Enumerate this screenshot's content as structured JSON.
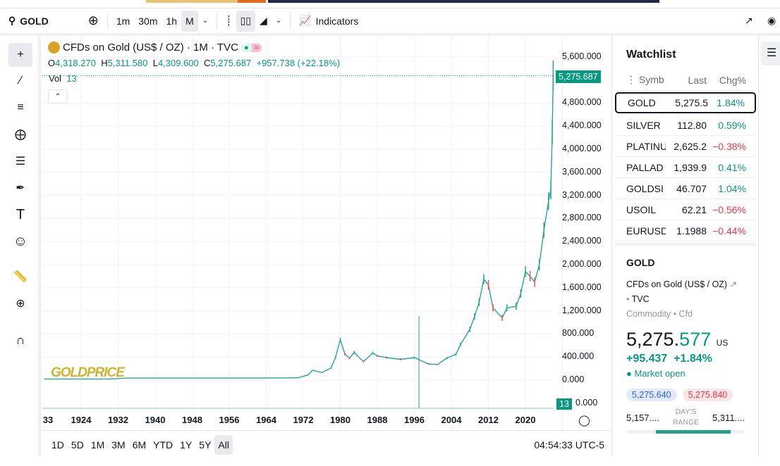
{
  "toolbar": {
    "symbol": "GOLD",
    "intervals": [
      "1m",
      "30m",
      "1h",
      "M"
    ],
    "indicators": "Indicators"
  },
  "legend": {
    "title": "CFDs on Gold (US$ / OZ) · 1M · TVC",
    "o_label": "O",
    "o": "4,318.270",
    "h_label": "H",
    "h": "5,311.580",
    "l_label": "L",
    "l": "4,309.600",
    "c_label": "C",
    "c": "5,275.687",
    "change": "+957.738 (+22.18%)",
    "vol_label": "Vol",
    "vol": "13"
  },
  "price_axis": [
    "5,600.000",
    "4,800.000",
    "4,400.000",
    "4,000.000",
    "3,600.000",
    "3,200.000",
    "2,800.000",
    "2,400.000",
    "2,000.000",
    "1,600.000",
    "1,200.000",
    "800.000",
    "400.000",
    "0.000",
    "0.000"
  ],
  "last_price_tag": "5,275.687",
  "vol_tag": "13",
  "time_axis": [
    "33",
    "1924",
    "1932",
    "1940",
    "1948",
    "1956",
    "1964",
    "1972",
    "1980",
    "1988",
    "1996",
    "2004",
    "2012",
    "2020"
  ],
  "ranges": [
    "1D",
    "5D",
    "1M",
    "3M",
    "6M",
    "YTD",
    "1Y",
    "5Y",
    "All"
  ],
  "clock": "04:54:33 UTC-5",
  "watermark": "GOLDPRICE",
  "watchlist": {
    "title": "Watchlist",
    "headers": [
      "Symb",
      "Last",
      "Chg%"
    ],
    "rows": [
      {
        "symbol": "GOLD",
        "last": "5,275.5",
        "chg": "1.84%",
        "dir": "up"
      },
      {
        "symbol": "SILVER",
        "last": "112.80",
        "chg": "0.59%",
        "dir": "up"
      },
      {
        "symbol": "PLATINU",
        "last": "2,625.2",
        "chg": "−0.38%",
        "dir": "down"
      },
      {
        "symbol": "PALLAD",
        "last": "1,939.9",
        "chg": "0.41%",
        "dir": "up"
      },
      {
        "symbol": "GOLDSI",
        "last": "46.707",
        "chg": "1.04%",
        "dir": "up"
      },
      {
        "symbol": "USOIL",
        "last": "62.21",
        "chg": "−0.56%",
        "dir": "down"
      },
      {
        "symbol": "EURUSD",
        "last": "1.1988",
        "chg": "−0.44%",
        "dir": "down"
      }
    ]
  },
  "details": {
    "symbol": "GOLD",
    "name": "CFDs on Gold (US$ / OZ)",
    "exchange": "TVC",
    "category": "Commodity",
    "type": "Cfd",
    "price_main": "5,275.",
    "price_frac": "577",
    "currency": "US",
    "change": "+95.437",
    "change_pct": "+1.84%",
    "status": "Market open",
    "bid": "5,275.640",
    "ask": "5,275.840",
    "range_low": "5,157....",
    "range_label1": "DAY'S",
    "range_label2": "RANGE",
    "range_high": "5,311...."
  },
  "colors": {
    "up": "#089981",
    "down": "#f23645",
    "accent": "#2a8f7f"
  },
  "chart_data": {
    "type": "line",
    "title": "CFDs on Gold (US$ / OZ) · 1M · TVC",
    "x": [
      1916,
      1930,
      1934,
      1950,
      1968,
      1971,
      1973,
      1974,
      1976,
      1978,
      1979,
      1980,
      1981,
      1982,
      1983,
      1985,
      1987,
      1988,
      1990,
      1993,
      1996,
      1999,
      2001,
      2003,
      2005,
      2006,
      2008,
      2009,
      2010,
      2011,
      2012,
      2013,
      2015,
      2016,
      2018,
      2019,
      2020,
      2021,
      2022,
      2023,
      2024,
      2025,
      2025.5,
      2025.8,
      2026
    ],
    "y": [
      20,
      20,
      35,
      35,
      38,
      42,
      90,
      170,
      130,
      210,
      400,
      700,
      450,
      380,
      480,
      320,
      470,
      420,
      390,
      360,
      390,
      280,
      270,
      380,
      450,
      620,
      880,
      1100,
      1350,
      1750,
      1650,
      1250,
      1080,
      1250,
      1280,
      1500,
      1880,
      1800,
      1700,
      2000,
      2600,
      3100,
      3300,
      4300,
      5275
    ],
    "ylim": [
      0,
      5600
    ],
    "xlim": [
      1916,
      2026
    ]
  }
}
